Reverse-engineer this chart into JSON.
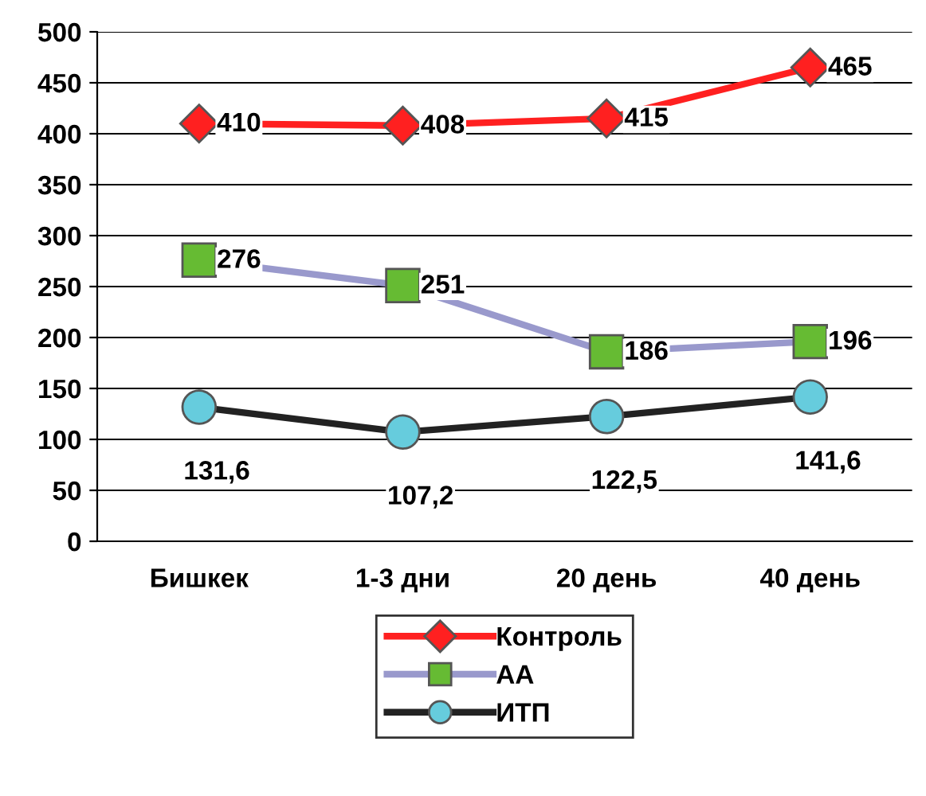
{
  "chart_data": {
    "type": "line",
    "categories": [
      "Бишкек",
      "1-3 дни",
      "20 день",
      "40 день"
    ],
    "series": [
      {
        "name": "Контроль",
        "color": "#ff2020",
        "colors": [
          "#ff2020",
          "#ff2020",
          "#ff2020",
          "#ff2020"
        ],
        "marker": "diamond",
        "values": [
          410,
          408,
          415,
          465
        ],
        "value_labels": [
          "410",
          "408",
          "415",
          "465"
        ]
      },
      {
        "name": "АА",
        "color": "#9999cc",
        "colors": [
          "#66bb33",
          "#66bb33",
          "#66bb33",
          "#66bb33"
        ],
        "marker": "square",
        "values": [
          276,
          251,
          186,
          196
        ],
        "value_labels": [
          "276",
          "251",
          "186",
          "196"
        ]
      },
      {
        "name": "ИТП",
        "color": "#222222",
        "colors": [
          "#66ccdd",
          "#66ccdd",
          "#66ccdd",
          "#66ccdd"
        ],
        "marker": "circle",
        "values": [
          131.6,
          107.2,
          122.5,
          141.6
        ],
        "value_labels": [
          "131,6",
          "107,2",
          "122,5",
          "141,6"
        ]
      }
    ],
    "ylim": [
      0,
      500
    ],
    "yticks": [
      0,
      50,
      100,
      150,
      200,
      250,
      300,
      350,
      400,
      450,
      500
    ],
    "grid": "y",
    "legend": "bottom",
    "line_style": "solid"
  }
}
